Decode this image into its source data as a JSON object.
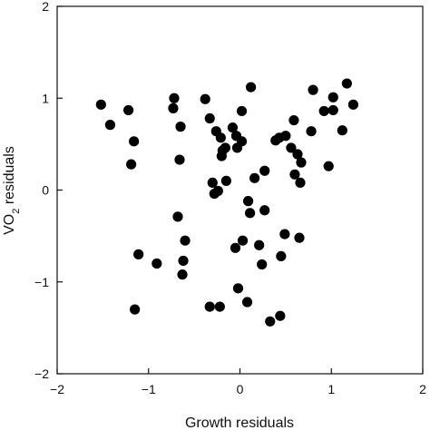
{
  "chart_data": {
    "type": "scatter",
    "title": "",
    "xlabel": "Growth residuals",
    "ylabel": {
      "prefix": "VO",
      "subscript": "2",
      "suffix": " residuals"
    },
    "xlim": [
      -2,
      2
    ],
    "ylim": [
      -2,
      2
    ],
    "xticks": [
      -2,
      -1,
      0,
      1,
      2
    ],
    "yticks": [
      -2,
      -1,
      0,
      1,
      2
    ],
    "grid": false,
    "legend": "none",
    "marker_color": "#000000",
    "points": [
      {
        "x": -1.52,
        "y": 0.93
      },
      {
        "x": -1.42,
        "y": 0.71
      },
      {
        "x": -1.22,
        "y": 0.87
      },
      {
        "x": -1.16,
        "y": 0.53
      },
      {
        "x": -1.19,
        "y": 0.28
      },
      {
        "x": -1.11,
        "y": -0.7
      },
      {
        "x": -0.91,
        "y": -0.8
      },
      {
        "x": -1.15,
        "y": -1.3
      },
      {
        "x": -0.72,
        "y": 1.0
      },
      {
        "x": -0.73,
        "y": 0.89
      },
      {
        "x": -0.65,
        "y": 0.69
      },
      {
        "x": -0.66,
        "y": 0.33
      },
      {
        "x": -0.68,
        "y": -0.29
      },
      {
        "x": -0.6,
        "y": -0.55
      },
      {
        "x": -0.62,
        "y": -0.77
      },
      {
        "x": -0.63,
        "y": -0.92
      },
      {
        "x": -0.38,
        "y": 0.99
      },
      {
        "x": -0.33,
        "y": 0.78
      },
      {
        "x": -0.26,
        "y": 0.64
      },
      {
        "x": -0.21,
        "y": 0.57
      },
      {
        "x": -0.19,
        "y": 0.43
      },
      {
        "x": -0.16,
        "y": 0.46
      },
      {
        "x": -0.2,
        "y": 0.37
      },
      {
        "x": -0.08,
        "y": 0.68
      },
      {
        "x": -0.04,
        "y": 0.59
      },
      {
        "x": 0.02,
        "y": 0.86
      },
      {
        "x": 0.12,
        "y": 1.12
      },
      {
        "x": -0.03,
        "y": 0.46
      },
      {
        "x": 0.02,
        "y": 0.53
      },
      {
        "x": -0.3,
        "y": 0.08
      },
      {
        "x": -0.28,
        "y": -0.04
      },
      {
        "x": -0.24,
        "y": -0.01
      },
      {
        "x": -0.15,
        "y": 0.1
      },
      {
        "x": 0.16,
        "y": 0.13
      },
      {
        "x": 0.27,
        "y": 0.21
      },
      {
        "x": 0.09,
        "y": -0.12
      },
      {
        "x": 0.11,
        "y": -0.25
      },
      {
        "x": 0.27,
        "y": -0.22
      },
      {
        "x": -0.05,
        "y": -0.63
      },
      {
        "x": 0.03,
        "y": -0.55
      },
      {
        "x": 0.21,
        "y": -0.6
      },
      {
        "x": 0.24,
        "y": -0.81
      },
      {
        "x": 0.45,
        "y": -0.72
      },
      {
        "x": 0.49,
        "y": -0.48
      },
      {
        "x": 0.65,
        "y": -0.52
      },
      {
        "x": -0.02,
        "y": -1.07
      },
      {
        "x": 0.08,
        "y": -1.22
      },
      {
        "x": -0.33,
        "y": -1.27
      },
      {
        "x": -0.22,
        "y": -1.27
      },
      {
        "x": 0.33,
        "y": -1.43
      },
      {
        "x": 0.44,
        "y": -1.37
      },
      {
        "x": 0.39,
        "y": 0.54
      },
      {
        "x": 0.43,
        "y": 0.57
      },
      {
        "x": 0.5,
        "y": 0.59
      },
      {
        "x": 0.56,
        "y": 0.46
      },
      {
        "x": 0.59,
        "y": 0.76
      },
      {
        "x": 0.63,
        "y": 0.39
      },
      {
        "x": 0.67,
        "y": 0.3
      },
      {
        "x": 0.6,
        "y": 0.17
      },
      {
        "x": 0.66,
        "y": 0.08
      },
      {
        "x": 0.78,
        "y": 0.64
      },
      {
        "x": 0.8,
        "y": 1.09
      },
      {
        "x": 0.92,
        "y": 0.86
      },
      {
        "x": 1.02,
        "y": 1.01
      },
      {
        "x": 1.02,
        "y": 0.87
      },
      {
        "x": 1.17,
        "y": 1.16
      },
      {
        "x": 1.12,
        "y": 0.65
      },
      {
        "x": 1.24,
        "y": 0.93
      },
      {
        "x": 0.97,
        "y": 0.26
      }
    ]
  }
}
